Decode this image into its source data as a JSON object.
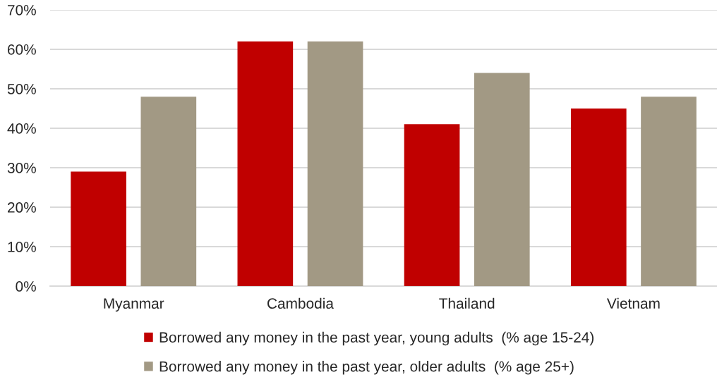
{
  "chart_data": {
    "type": "bar",
    "categories": [
      "Myanmar",
      "Cambodia",
      "Thailand",
      "Vietnam"
    ],
    "series": [
      {
        "name": "Borrowed any money in the past year, young adults  (% age 15-24)",
        "color": "#c00000",
        "values": [
          29,
          62,
          41,
          45
        ]
      },
      {
        "name": "Borrowed any money in the past year, older adults  (% age 25+)",
        "color": "#a29984",
        "values": [
          48,
          62,
          54,
          48
        ]
      }
    ],
    "ylim": [
      0,
      70
    ],
    "yticks": [
      {
        "value": 0,
        "label": "0%"
      },
      {
        "value": 10,
        "label": "10%"
      },
      {
        "value": 20,
        "label": "20%"
      },
      {
        "value": 30,
        "label": "30%"
      },
      {
        "value": 40,
        "label": "40%"
      },
      {
        "value": 50,
        "label": "50%"
      },
      {
        "value": 60,
        "label": "60%"
      },
      {
        "value": 70,
        "label": "70%"
      }
    ],
    "grid": "y",
    "legend": "bottom"
  }
}
